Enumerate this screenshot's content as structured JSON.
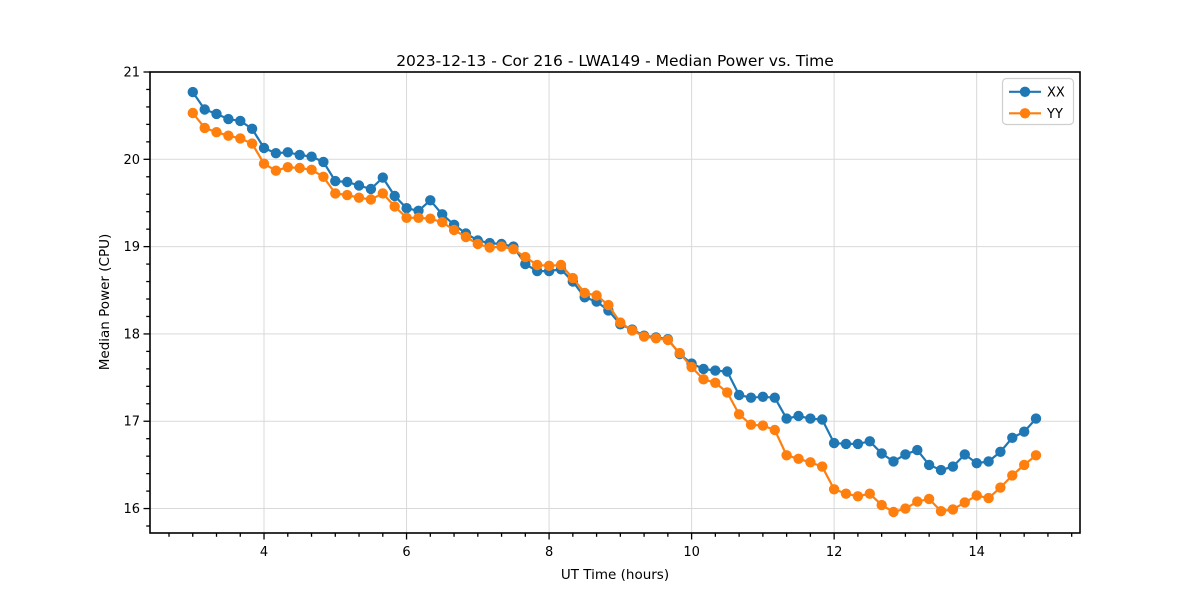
{
  "chart_data": {
    "type": "line",
    "title": "2023-12-13 - Cor 216 - LWA149 - Median Power vs. Time",
    "xlabel": "UT Time (hours)",
    "ylabel": "Median Power (CPU)",
    "xlim": [
      2.4,
      15.45
    ],
    "ylim": [
      15.72,
      21.0
    ],
    "x_ticks": [
      4,
      6,
      8,
      10,
      12,
      14
    ],
    "y_ticks": [
      16,
      17,
      18,
      19,
      20,
      21
    ],
    "x_minor_per_unit": 3,
    "y_minor_step": 0.2,
    "grid": true,
    "legend_position": "upper right",
    "x": [
      3.0,
      3.167,
      3.333,
      3.5,
      3.667,
      3.833,
      4.0,
      4.167,
      4.333,
      4.5,
      4.667,
      4.833,
      5.0,
      5.167,
      5.333,
      5.5,
      5.667,
      5.833,
      6.0,
      6.167,
      6.333,
      6.5,
      6.667,
      6.833,
      7.0,
      7.167,
      7.333,
      7.5,
      7.667,
      7.833,
      8.0,
      8.167,
      8.333,
      8.5,
      8.667,
      8.833,
      9.0,
      9.167,
      9.333,
      9.5,
      9.667,
      9.833,
      10.0,
      10.167,
      10.333,
      10.5,
      10.667,
      10.833,
      11.0,
      11.167,
      11.333,
      11.5,
      11.667,
      11.833,
      12.0,
      12.167,
      12.333,
      12.5,
      12.667,
      12.833,
      13.0,
      13.167,
      13.333,
      13.5,
      13.667,
      13.833,
      14.0,
      14.167,
      14.333,
      14.5,
      14.667,
      14.833
    ],
    "series": [
      {
        "name": "XX",
        "color": "#1f77b4",
        "values": [
          20.77,
          20.57,
          20.52,
          20.46,
          20.44,
          20.35,
          20.13,
          20.07,
          20.08,
          20.05,
          20.03,
          19.97,
          19.75,
          19.74,
          19.7,
          19.66,
          19.79,
          19.58,
          19.44,
          19.41,
          19.53,
          19.37,
          19.25,
          19.15,
          19.07,
          19.04,
          19.03,
          19.0,
          18.8,
          18.72,
          18.72,
          18.74,
          18.6,
          18.42,
          18.37,
          18.27,
          18.11,
          18.05,
          17.98,
          17.96,
          17.94,
          17.77,
          17.66,
          17.6,
          17.58,
          17.57,
          17.3,
          17.27,
          17.28,
          17.27,
          17.03,
          17.06,
          17.03,
          17.02,
          16.75,
          16.74,
          16.74,
          16.77,
          16.63,
          16.54,
          16.62,
          16.67,
          16.5,
          16.44,
          16.48,
          16.62,
          16.52,
          16.54,
          16.65,
          16.81,
          16.88,
          17.03
        ]
      },
      {
        "name": "YY",
        "color": "#ff7f0e",
        "values": [
          20.53,
          20.36,
          20.31,
          20.27,
          20.24,
          20.18,
          19.95,
          19.87,
          19.91,
          19.9,
          19.88,
          19.8,
          19.61,
          19.59,
          19.56,
          19.54,
          19.61,
          19.46,
          19.33,
          19.33,
          19.32,
          19.28,
          19.19,
          19.11,
          19.03,
          18.99,
          19.0,
          18.97,
          18.88,
          18.79,
          18.78,
          18.79,
          18.64,
          18.47,
          18.44,
          18.33,
          18.13,
          18.04,
          17.97,
          17.95,
          17.93,
          17.78,
          17.62,
          17.48,
          17.44,
          17.33,
          17.08,
          16.96,
          16.95,
          16.9,
          16.61,
          16.57,
          16.53,
          16.48,
          16.22,
          16.17,
          16.14,
          16.17,
          16.04,
          15.96,
          16.0,
          16.08,
          16.11,
          15.97,
          15.99,
          16.07,
          16.15,
          16.12,
          16.24,
          16.38,
          16.5,
          16.61
        ]
      }
    ]
  }
}
